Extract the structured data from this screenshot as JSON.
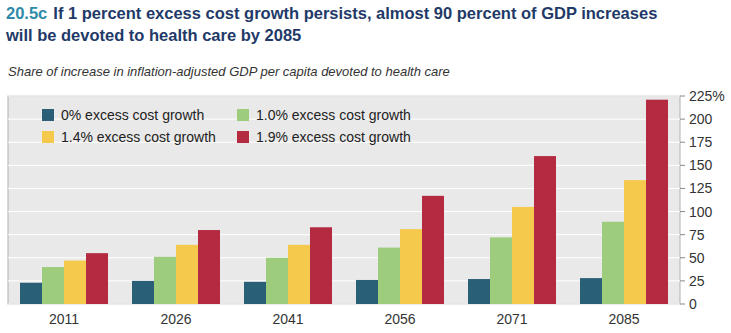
{
  "chart_data": {
    "type": "bar",
    "title": "20.5c If 1 percent excess cost growth persists, almost 90 percent of GDP increases will be devoted to health care by 2085",
    "subtitle": "Share of increase in inflation-adjusted GDP per capita devoted to health care",
    "categories": [
      "2011",
      "2026",
      "2041",
      "2056",
      "2071",
      "2085"
    ],
    "series": [
      {
        "name": "0% excess cost growth",
        "color": "#2a5f78",
        "values": [
          23,
          25,
          24,
          26,
          27,
          28
        ]
      },
      {
        "name": "1.0% excess cost growth",
        "color": "#9dcc7d",
        "values": [
          40,
          51,
          50,
          61,
          72,
          89
        ]
      },
      {
        "name": "1.4% excess cost growth",
        "color": "#f4c94c",
        "values": [
          47,
          64,
          64,
          81,
          105,
          134
        ]
      },
      {
        "name": "1.9% excess cost growth",
        "color": "#b42a40",
        "values": [
          55,
          80,
          83,
          117,
          160,
          221
        ]
      }
    ],
    "ylim": [
      0,
      225
    ],
    "yticks": [
      0,
      25,
      50,
      75,
      100,
      125,
      150,
      175,
      200,
      {
        "value": 225,
        "label": "225%"
      }
    ],
    "grid": true,
    "legend": "upper left"
  }
}
